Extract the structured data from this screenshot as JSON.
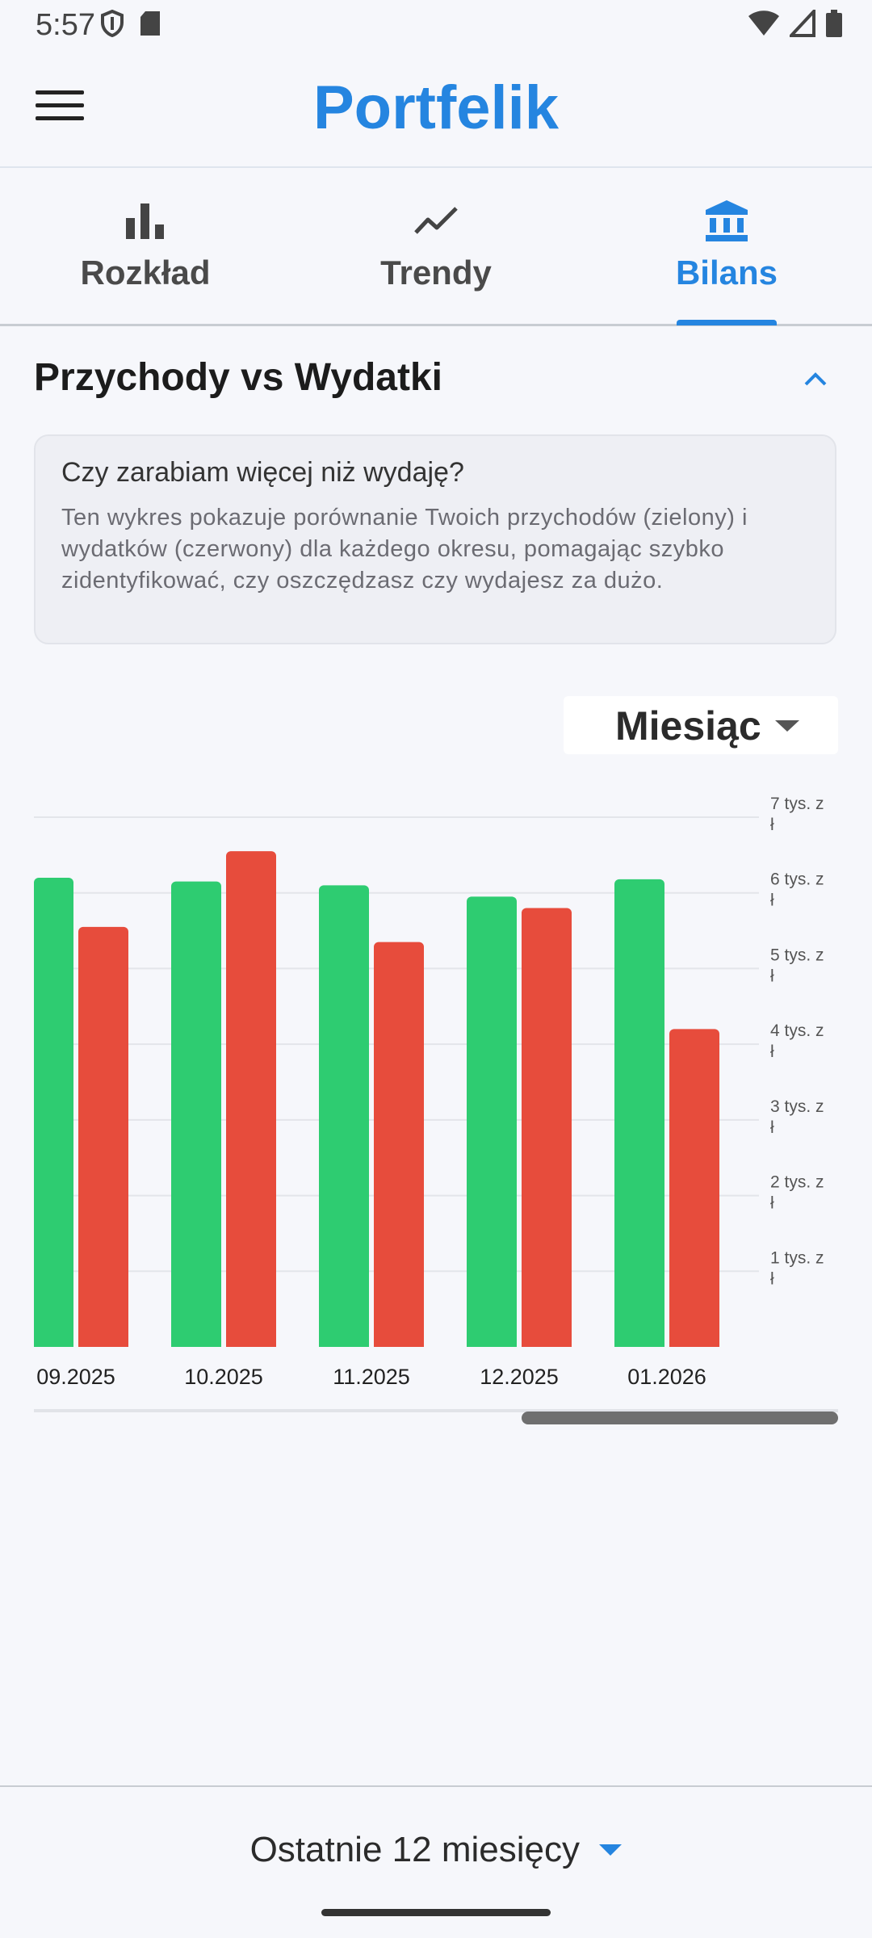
{
  "status_bar": {
    "time": "5:57"
  },
  "app_bar": {
    "title": "Portfelik"
  },
  "tabs": [
    {
      "label": "Rozkład",
      "icon": "bar-chart-icon",
      "active": false
    },
    {
      "label": "Trendy",
      "icon": "trend-line-icon",
      "active": false
    },
    {
      "label": "Bilans",
      "icon": "bank-icon",
      "active": true
    }
  ],
  "section": {
    "title": "Przychody vs Wydatki",
    "info_question": "Czy zarabiam więcej niż wydaję?",
    "info_text": "Ten wykres pokazuje porównanie Twoich przychodów (zielony) i wydatków (czerwony) dla każdego okresu, pomagając szybko zidentyfikować, czy oszczędzasz czy wydajesz za dużo."
  },
  "period_selector": {
    "value": "Miesiąc"
  },
  "chart_data": {
    "type": "bar",
    "categories": [
      "09.2025",
      "10.2025",
      "11.2025",
      "12.2025",
      "01.2026"
    ],
    "series": [
      {
        "color": "#2ecc71",
        "values": [
          6200,
          6150,
          6100,
          5950,
          6180
        ]
      },
      {
        "color": "#e74c3c",
        "values": [
          5550,
          6550,
          5350,
          5800,
          4200
        ]
      }
    ],
    "y_ticks": [
      "1 tys. zł",
      "2 tys. zł",
      "3 tys. zł",
      "4 tys. zł",
      "5 tys. zł",
      "6 tys. zł",
      "7 tys. zł"
    ],
    "ylim": [
      0,
      7000
    ],
    "grid": true,
    "y_axis_side": "right",
    "scrolled_to": "end"
  },
  "bottom": {
    "range_label": "Ostatnie 12 miesięcy"
  },
  "colors": {
    "accent": "#2585e0",
    "income": "#2ecc71",
    "expense": "#e74c3c"
  }
}
